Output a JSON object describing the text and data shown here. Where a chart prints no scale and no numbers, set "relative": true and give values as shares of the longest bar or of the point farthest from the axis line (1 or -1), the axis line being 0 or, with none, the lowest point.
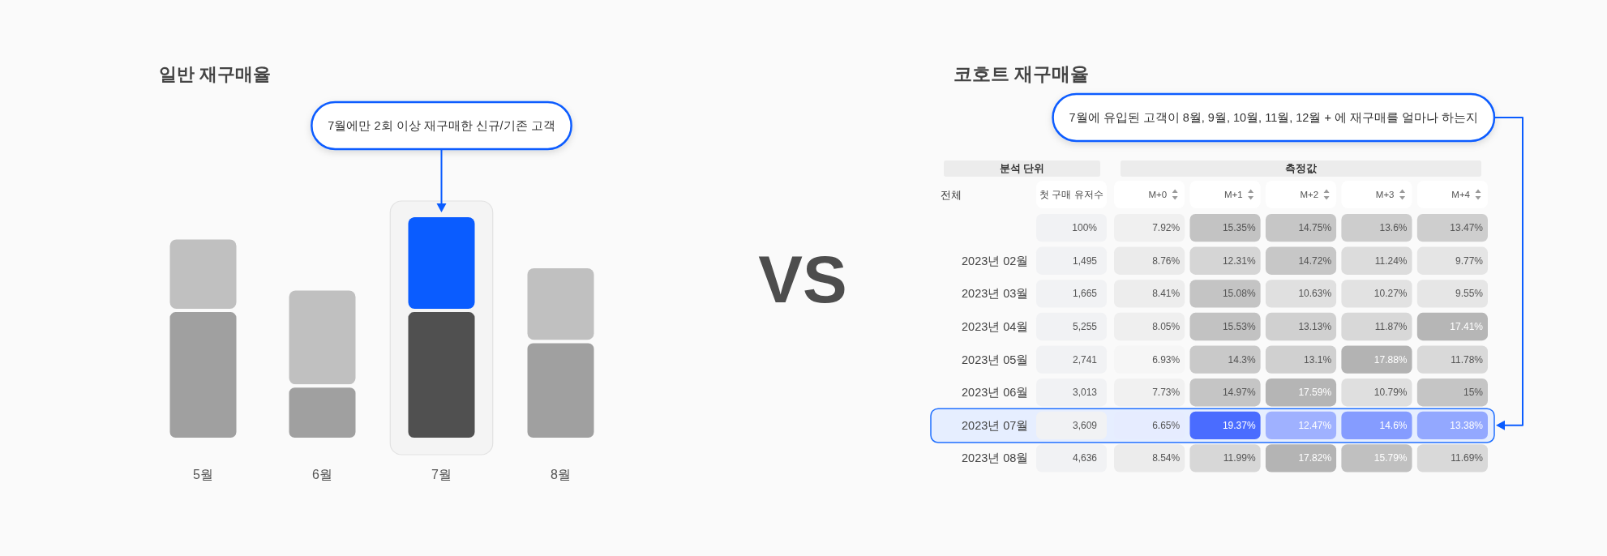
{
  "chart_data": [
    {
      "type": "bar",
      "title": "일반 재구매율",
      "categories": [
        "5월",
        "6월",
        "7월",
        "8월"
      ],
      "stacked": true,
      "relative": true,
      "series": [
        {
          "colors": [
            "#a0a0a0",
            "#a0a0a0",
            "#505050",
            "#a0a0a0"
          ],
          "values": [
            0.58,
            0.24,
            0.58,
            0.44
          ]
        },
        {
          "colors": [
            "#c0c0c0",
            "#c0c0c0",
            "#0a5cff",
            "#c0c0c0"
          ],
          "values": [
            0.32,
            0.43,
            0.42,
            0.33
          ]
        }
      ],
      "bands": [
        {
          "axis": "x",
          "from": "7월",
          "to": "7월",
          "color": "#f4f4f4"
        }
      ],
      "annotations": [
        "7월에만 2회 이상 재구매한 신규/기존 고객"
      ]
    },
    {
      "type": "other",
      "title": "VS"
    },
    {
      "type": "heatmap",
      "title": "코호트 재구매율",
      "xlabel": "측정값",
      "ylabel": "전체",
      "y2label": "첫 구매 유저수",
      "categories": [
        "M+0",
        "M+1",
        "M+2",
        "M+3",
        "M+4"
      ],
      "y_categories": [
        null,
        "2023년 02월",
        "2023년 03월",
        "2023년 04월",
        "2023년 05월",
        "2023년 06월",
        "2023년 07월",
        "2023년 08월"
      ],
      "y2_categories": [
        "100%",
        "1,495",
        "1,665",
        "5,255",
        "2,741",
        "3,013",
        "3,609",
        "4,636"
      ],
      "cells": [
        [
          7.92,
          15.35,
          14.75,
          13.6,
          13.47
        ],
        [
          8.76,
          12.31,
          14.72,
          11.24,
          9.77
        ],
        [
          8.41,
          15.08,
          10.63,
          10.27,
          9.55
        ],
        [
          8.05,
          15.53,
          13.13,
          11.87,
          17.41
        ],
        [
          6.93,
          14.3,
          13.1,
          17.88,
          11.78
        ],
        [
          7.73,
          14.97,
          17.59,
          10.79,
          15
        ],
        [
          6.65,
          19.37,
          12.47,
          14.6,
          13.38
        ],
        [
          8.54,
          11.99,
          17.82,
          15.79,
          11.69
        ]
      ],
      "cell_labels": [
        [
          "7.92%",
          "15.35%",
          "14.75%",
          "13.6%",
          "13.47%"
        ],
        [
          "8.76%",
          "12.31%",
          "14.72%",
          "11.24%",
          "9.77%"
        ],
        [
          "8.41%",
          "15.08%",
          "10.63%",
          "10.27%",
          "9.55%"
        ],
        [
          "8.05%",
          "15.53%",
          "13.13%",
          "11.87%",
          "17.41%"
        ],
        [
          "6.93%",
          "14.3%",
          "13.1%",
          "17.88%",
          "11.78%"
        ],
        [
          "7.73%",
          "14.97%",
          "17.59%",
          "10.79%",
          "15%"
        ],
        [
          "6.65%",
          "19.37%",
          "12.47%",
          "14.6%",
          "13.38%"
        ],
        [
          "8.54%",
          "11.99%",
          "17.82%",
          "15.79%",
          "11.69%"
        ]
      ],
      "bands": [
        {
          "axis": "y",
          "from": "2023년 07월",
          "to": "2023년 07월",
          "color": "#e6eeff"
        }
      ],
      "annotations": [
        "분석 단위",
        "7월에 유입된 고객이 8월, 9월, 10월, 11월, 12월 + 에 재구매를 얼마나 하는지"
      ]
    }
  ]
}
